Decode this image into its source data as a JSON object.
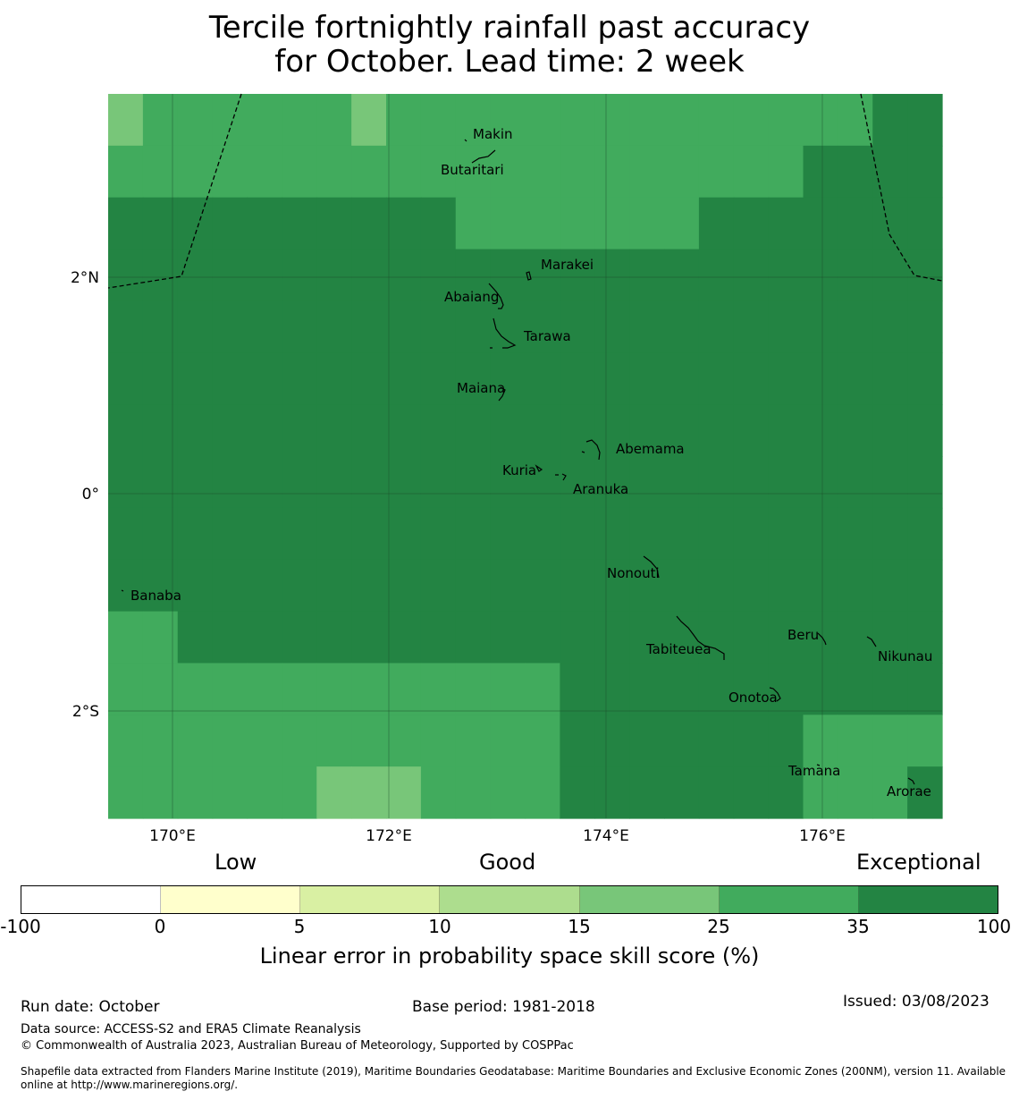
{
  "title": {
    "line1": "Tercile fortnightly rainfall past accuracy",
    "line2": "for October. Lead time: 2 week"
  },
  "map": {
    "lon_labels": [
      "170°E",
      "172°E",
      "174°E",
      "176°E"
    ],
    "lat_labels": [
      "2°N",
      "0°",
      "2°S"
    ],
    "islands": [
      "Makin",
      "Butaritari",
      "Marakei",
      "Abaiang",
      "Tarawa",
      "Maiana",
      "Abemama",
      "Kuria",
      "Aranuka",
      "Nonouti",
      "Banaba",
      "Beru",
      "Nikunau",
      "Tabiteuea",
      "Onotoa",
      "Tamana",
      "Arorae"
    ],
    "skill_grid_bins": [
      [
        5,
        6,
        6,
        6,
        6,
        6,
        6,
        5,
        6,
        6,
        6,
        6,
        6,
        6,
        6,
        6,
        6,
        6,
        6,
        6,
        6,
        6,
        7,
        7
      ],
      [
        6,
        6,
        6,
        6,
        6,
        6,
        6,
        6,
        6,
        6,
        6,
        6,
        6,
        6,
        6,
        6,
        6,
        6,
        6,
        6,
        7,
        7,
        7,
        7
      ],
      [
        7,
        7,
        7,
        7,
        7,
        7,
        7,
        7,
        7,
        7,
        6,
        6,
        6,
        6,
        6,
        6,
        6,
        7,
        7,
        7,
        7,
        7,
        7,
        7
      ],
      [
        7,
        7,
        7,
        7,
        7,
        7,
        7,
        7,
        7,
        7,
        7,
        7,
        7,
        7,
        7,
        7,
        7,
        7,
        7,
        7,
        7,
        7,
        7,
        7
      ],
      [
        7,
        7,
        7,
        7,
        7,
        7,
        7,
        7,
        7,
        7,
        7,
        7,
        7,
        7,
        7,
        7,
        7,
        7,
        7,
        7,
        7,
        7,
        7,
        7
      ],
      [
        7,
        7,
        7,
        7,
        7,
        7,
        7,
        7,
        7,
        7,
        7,
        7,
        7,
        7,
        7,
        7,
        7,
        7,
        7,
        7,
        7,
        7,
        7,
        7
      ],
      [
        7,
        7,
        7,
        7,
        7,
        7,
        7,
        7,
        7,
        7,
        7,
        7,
        7,
        7,
        7,
        7,
        7,
        7,
        7,
        7,
        7,
        7,
        7,
        7
      ],
      [
        7,
        7,
        7,
        7,
        7,
        7,
        7,
        7,
        7,
        7,
        7,
        7,
        7,
        7,
        7,
        7,
        7,
        7,
        7,
        7,
        7,
        7,
        7,
        7
      ],
      [
        7,
        7,
        7,
        7,
        7,
        7,
        7,
        7,
        7,
        7,
        7,
        7,
        7,
        7,
        7,
        7,
        7,
        7,
        7,
        7,
        7,
        7,
        7,
        7
      ],
      [
        7,
        7,
        7,
        7,
        7,
        7,
        7,
        7,
        7,
        7,
        7,
        7,
        7,
        7,
        7,
        7,
        7,
        7,
        7,
        7,
        7,
        7,
        7,
        7
      ],
      [
        6,
        6,
        7,
        7,
        7,
        7,
        7,
        7,
        7,
        7,
        7,
        7,
        7,
        7,
        7,
        7,
        7,
        7,
        7,
        7,
        7,
        7,
        7,
        7
      ],
      [
        6,
        6,
        6,
        6,
        6,
        6,
        6,
        6,
        6,
        6,
        6,
        6,
        6,
        7,
        7,
        7,
        7,
        7,
        7,
        7,
        7,
        7,
        7,
        7
      ],
      [
        6,
        6,
        6,
        6,
        6,
        6,
        6,
        6,
        6,
        6,
        6,
        6,
        6,
        7,
        7,
        7,
        7,
        7,
        7,
        7,
        6,
        6,
        6,
        6
      ],
      [
        6,
        6,
        6,
        6,
        6,
        6,
        5,
        5,
        5,
        6,
        6,
        6,
        6,
        7,
        7,
        7,
        7,
        7,
        7,
        7,
        6,
        6,
        6,
        7
      ]
    ]
  },
  "colorbar": {
    "categories": [
      "Low",
      "Good",
      "Exceptional"
    ],
    "ticks": [
      "-100",
      "0",
      "5",
      "10",
      "15",
      "25",
      "35",
      "100"
    ],
    "colors": [
      "#ffffff",
      "#ffffcc",
      "#d9f0a3",
      "#addd8e",
      "#78c679",
      "#41ab5d",
      "#238443"
    ],
    "label": "Linear error in probability space skill score (%)"
  },
  "footer": {
    "run_date": "Run date: October",
    "base_period": "Base period: 1981-2018",
    "issued": "Issued: 03/08/2023",
    "data_source": "Data source: ACCESS-S2 and ERA5 Climate Reanalysis",
    "copyright": "© Commonwealth of Australia 2023, Australian Bureau of Meteorology, Supported by COSPPac",
    "shapefile": "Shapefile data extracted from Flanders Marine Institute (2019), Maritime Boundaries Geodatabase: Maritime Boundaries and Exclusive Economic Zones (200NM), version 11. Available online at http://www.marineregions.org/."
  }
}
